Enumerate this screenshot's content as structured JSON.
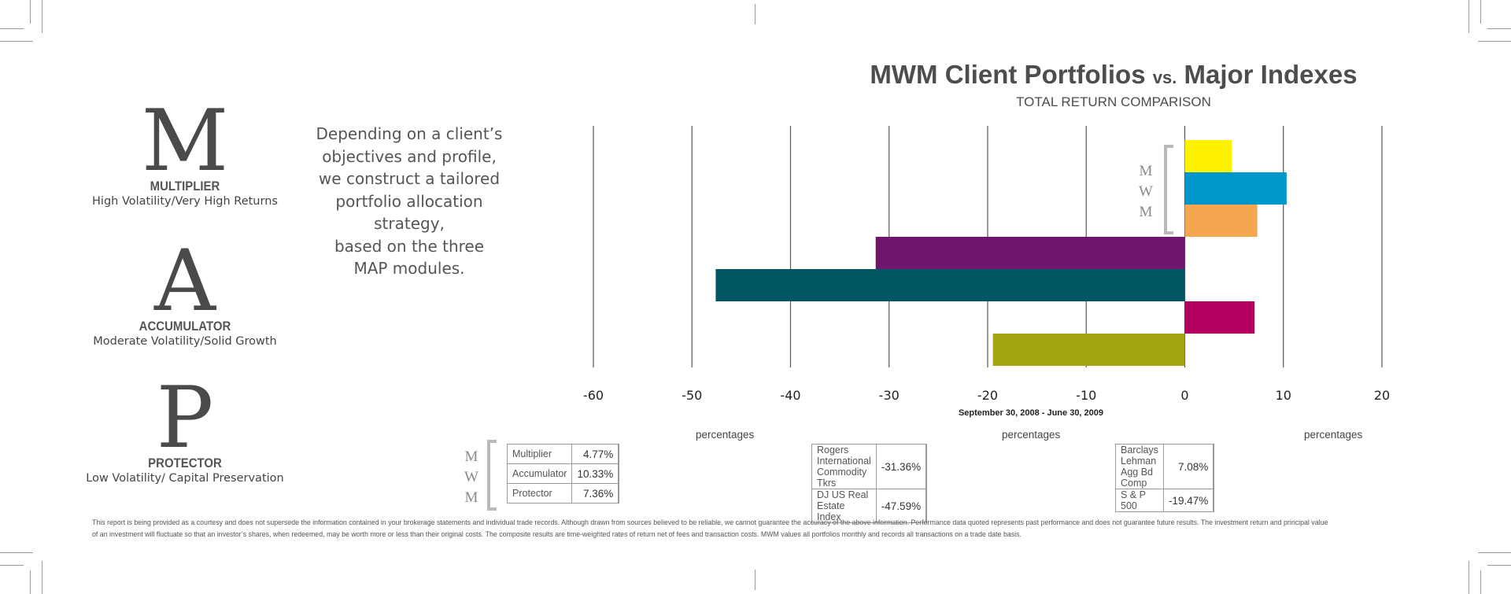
{
  "modules": [
    {
      "letter": "M",
      "name": "MULTIPLIER",
      "desc": "High Volatility/Very High Returns"
    },
    {
      "letter": "A",
      "name": "ACCUMULATOR",
      "desc": "Moderate Volatility/Solid Growth"
    },
    {
      "letter": "P",
      "name": "PROTECTOR",
      "desc": "Low Volatility/ Capital Preservation"
    }
  ],
  "intro_lines": [
    "Depending on a client’s",
    "objectives and profile,",
    "we construct a tailored",
    "portfolio allocation strategy,",
    "based on the three",
    "MAP modules."
  ],
  "chart_title_left": "MWM Client Portfolios",
  "chart_title_vs": "vs.",
  "chart_title_right": "Major Indexes",
  "chart_subtitle": "TOTAL RETURN COMPARISON",
  "period_note": "September 30, 2008 - June 30, 2009",
  "mwm_letters": [
    "M",
    "W",
    "M"
  ],
  "chart_data": {
    "type": "bar",
    "orientation": "horizontal",
    "title": "MWM Client Portfolios vs. Major Indexes",
    "subtitle": "TOTAL RETURN COMPARISON",
    "xlabel": "",
    "ylabel": "",
    "xlim": [
      -60,
      20
    ],
    "ticks": [
      -60,
      -50,
      -40,
      -30,
      -20,
      -10,
      0,
      10,
      20
    ],
    "grid": true,
    "categories": [
      "Multiplier",
      "Accumulator",
      "Protector",
      "Rogers International Commodity Tkrs",
      "DJ US Real Estate Index",
      "Barclays Lehman Agg Bd Comp",
      "S & P 500"
    ],
    "values": [
      4.77,
      10.33,
      7.36,
      -31.36,
      -47.59,
      7.08,
      -19.47
    ],
    "colors": [
      "#fff200",
      "#0098cc",
      "#f7a650",
      "#70146e",
      "#005663",
      "#b5005f",
      "#a2a50d"
    ]
  },
  "tables": [
    {
      "header": "percentages",
      "rows": [
        {
          "name": "Multiplier",
          "value": "4.77%",
          "color": "#fff200"
        },
        {
          "name": "Accumulator",
          "value": "10.33%",
          "color": "#0098cc"
        },
        {
          "name": "Protector",
          "value": "7.36%",
          "color": "#f7a650"
        }
      ]
    },
    {
      "header": "percentages",
      "rows": [
        {
          "name": "Rogers International Commodity Tkrs",
          "value": "-31.36%",
          "color": "#70146e"
        },
        {
          "name": "DJ US Real Estate Index",
          "value": "-47.59%",
          "color": "#005663"
        }
      ]
    },
    {
      "header": "percentages",
      "rows": [
        {
          "name": "Barclays Lehman Agg Bd Comp",
          "value": "7.08%",
          "color": "#b5005f"
        },
        {
          "name": "S & P 500",
          "value": "-19.47%",
          "color": "#a2a50d"
        }
      ]
    }
  ],
  "disclaimer": "This report is being provided as a courtesy and does not supersede the information contained in your brokerage statements and individual trade records. Although drawn from sources believed to be reliable, we cannot guarantee the accuracy of the above information. Performance data quoted represents past performance and does not guarantee future results. The investment return and principal value of an investment will fluctuate so that an investor’s shares, when redeemed, may be worth more or less than their original costs. The composite results are time-weighted rates of return net of fees and transaction costs. MWM values all portfolios monthly and records all transactions on a trade date basis."
}
